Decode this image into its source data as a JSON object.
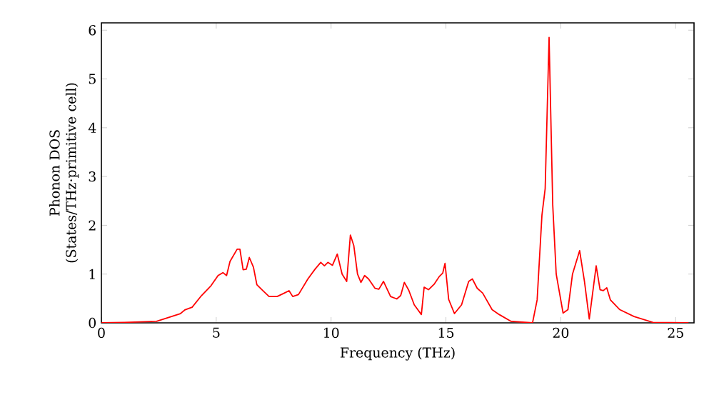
{
  "chart_data": {
    "type": "line",
    "xlabel": "Frequency (THz)",
    "ylabel": "Phonon DOS (States/THz·primitive cell)",
    "xlim": [
      0,
      25.8
    ],
    "ylim": [
      0,
      6.15
    ],
    "xticks": [
      0,
      5,
      10,
      15,
      20,
      25
    ],
    "yticks": [
      0,
      1,
      2,
      3,
      4,
      5,
      6
    ],
    "series": [
      {
        "color": "#ff0000",
        "x": [
          0,
          1,
          2.4,
          3.44,
          3.65,
          3.95,
          4.36,
          4.77,
          5.08,
          5.29,
          5.45,
          5.6,
          5.91,
          6.03,
          6.17,
          6.31,
          6.44,
          6.62,
          6.77,
          7.03,
          7.3,
          7.65,
          7.96,
          8.17,
          8.33,
          8.58,
          8.99,
          9.3,
          9.55,
          9.71,
          9.86,
          10.06,
          10.27,
          10.48,
          10.68,
          10.84,
          10.99,
          11.15,
          11.3,
          11.46,
          11.63,
          11.91,
          12.08,
          12.28,
          12.59,
          12.86,
          13.03,
          13.19,
          13.38,
          13.62,
          13.93,
          14.05,
          14.24,
          14.5,
          14.71,
          14.86,
          14.96,
          15.12,
          15.37,
          15.68,
          15.99,
          16.15,
          16.36,
          16.6,
          17.01,
          17.32,
          17.84,
          18.77,
          18.97,
          19.18,
          19.32,
          19.49,
          19.65,
          19.8,
          20.1,
          20.31,
          20.51,
          20.82,
          21.03,
          21.24,
          21.54,
          21.71,
          21.85,
          22.0,
          22.16,
          22.57,
          23.19,
          24.01,
          25.56
        ],
        "values": [
          0,
          0.01,
          0.03,
          0.19,
          0.27,
          0.32,
          0.56,
          0.76,
          0.97,
          1.03,
          0.97,
          1.26,
          1.51,
          1.51,
          1.09,
          1.1,
          1.34,
          1.14,
          0.78,
          0.66,
          0.54,
          0.54,
          0.61,
          0.66,
          0.54,
          0.58,
          0.9,
          1.1,
          1.24,
          1.17,
          1.24,
          1.18,
          1.41,
          1.0,
          0.85,
          1.8,
          1.58,
          1.0,
          0.83,
          0.97,
          0.9,
          0.71,
          0.69,
          0.85,
          0.54,
          0.49,
          0.56,
          0.83,
          0.67,
          0.37,
          0.17,
          0.73,
          0.68,
          0.8,
          0.95,
          1.02,
          1.22,
          0.48,
          0.19,
          0.37,
          0.85,
          0.9,
          0.71,
          0.61,
          0.27,
          0.17,
          0.03,
          0,
          0.47,
          2.21,
          2.75,
          5.85,
          2.41,
          1.0,
          0.2,
          0.27,
          1.0,
          1.48,
          0.85,
          0.08,
          1.17,
          0.68,
          0.66,
          0.72,
          0.47,
          0.27,
          0.13,
          0.01,
          0
        ]
      }
    ]
  }
}
